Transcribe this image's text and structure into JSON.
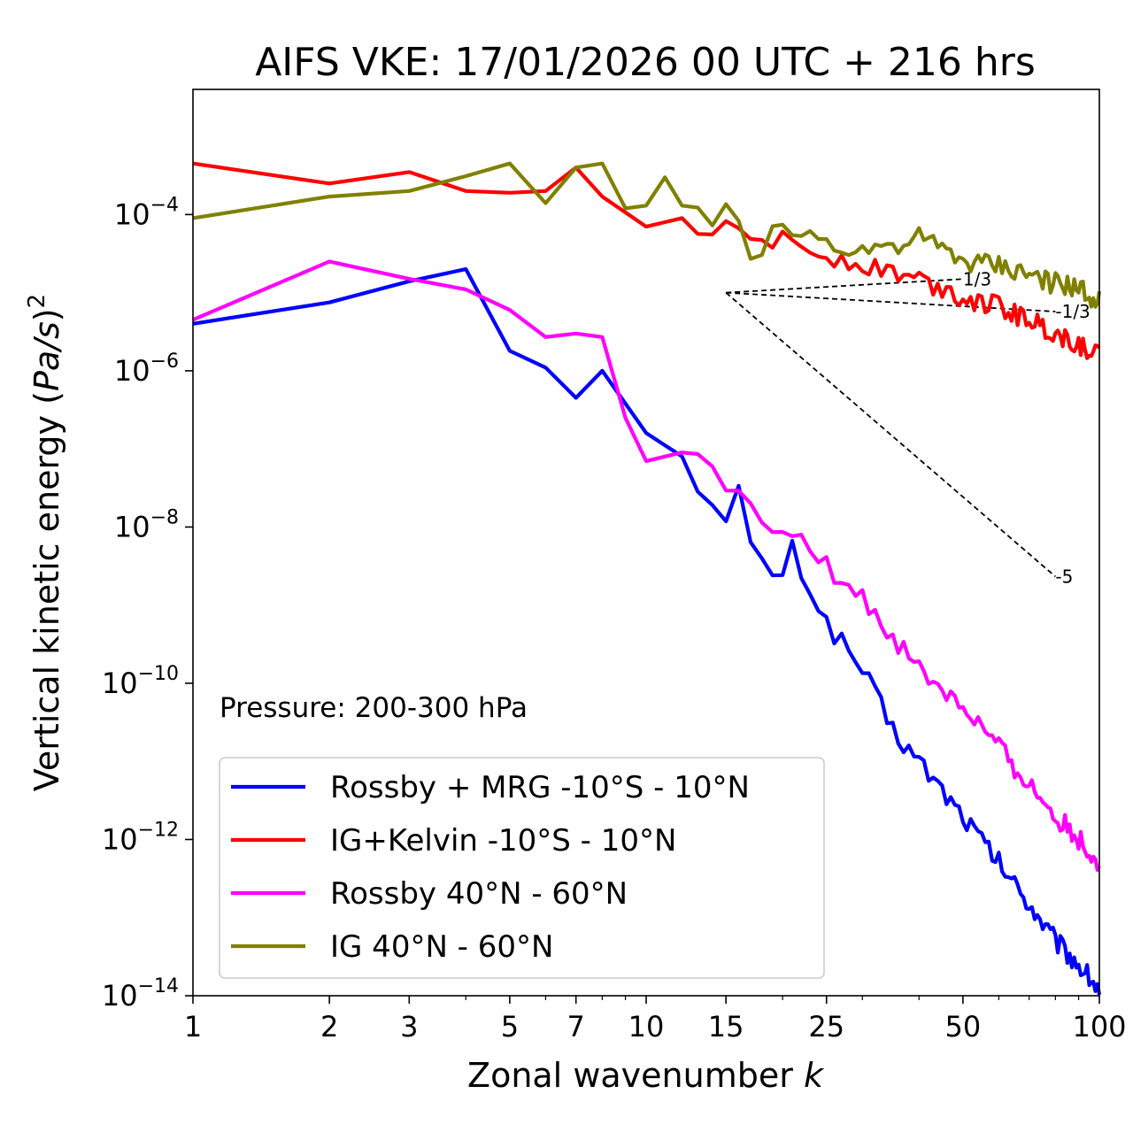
{
  "chart_data": {
    "type": "line",
    "title": "AIFS VKE: 17/01/2026 00 UTC + 216 hrs",
    "xlabel": "Zonal wavenumber",
    "xlabel_symbol": "k",
    "ylabel": "Vertical kinetic energy (",
    "ylabel_unit": "Pa/s",
    "ylabel_close": ")",
    "ylabel_exp": "2",
    "xscale": "log",
    "yscale": "log",
    "xlim": [
      1,
      100
    ],
    "ylim": [
      1e-14,
      0.004
    ],
    "xticks": [
      1,
      2,
      3,
      5,
      7,
      10,
      15,
      25,
      50,
      100
    ],
    "xtick_labels": [
      "1",
      "2",
      "3",
      "5",
      "7",
      "10",
      "15",
      "25",
      "50",
      "100"
    ],
    "yticks": [
      1e-14,
      1e-12,
      1e-10,
      1e-08,
      1e-06,
      0.0001
    ],
    "ytick_labels": [
      {
        "base": "10",
        "exp": "−14"
      },
      {
        "base": "10",
        "exp": "−12"
      },
      {
        "base": "10",
        "exp": "−10"
      },
      {
        "base": "10",
        "exp": "−8"
      },
      {
        "base": "10",
        "exp": "−6"
      },
      {
        "base": "10",
        "exp": "−4"
      }
    ],
    "annotation": "Pressure: 200-300 hPa",
    "legend_position": "lower-left",
    "reference_slopes": [
      {
        "label": "1/3",
        "k_start": 15,
        "k_end": 50,
        "y_start": 1e-05,
        "exponent": 0.3333
      },
      {
        "label": "-1/3",
        "k_start": 15,
        "k_end": 80,
        "y_start": 1e-05,
        "exponent": -0.3333
      },
      {
        "label": "-5",
        "k_start": 15,
        "k_end": 80,
        "y_start": 1e-05,
        "exponent": -5
      }
    ],
    "series": [
      {
        "name": "Rossby + MRG -10°S - 10°N",
        "color": "#0000ff",
        "anchors": [
          [
            1,
            4e-06
          ],
          [
            2,
            7.5e-06
          ],
          [
            3,
            1.4e-05
          ],
          [
            4,
            2e-05
          ],
          [
            5,
            1.8e-06
          ],
          [
            6,
            1.1e-06
          ],
          [
            7,
            4.5e-07
          ],
          [
            8,
            1e-06
          ],
          [
            10,
            1.6e-07
          ],
          [
            12,
            8e-08
          ],
          [
            15,
            1e-08
          ],
          [
            16,
            3e-08
          ],
          [
            17,
            5e-09
          ],
          [
            20,
            2.2e-09
          ],
          [
            21,
            5e-09
          ],
          [
            25,
            6e-10
          ],
          [
            30,
            1.5e-10
          ],
          [
            35,
            2.5e-11
          ],
          [
            40,
            1e-11
          ],
          [
            50,
            2e-12
          ],
          [
            60,
            5e-13
          ],
          [
            70,
            1.5e-13
          ],
          [
            80,
            5e-14
          ],
          [
            90,
            2.5e-14
          ],
          [
            100,
            1.2e-14
          ]
        ]
      },
      {
        "name": "IG+Kelvin -10°S - 10°N",
        "color": "#ff0000",
        "anchors": [
          [
            1,
            0.00045
          ],
          [
            2,
            0.00025
          ],
          [
            3,
            0.00035
          ],
          [
            4,
            0.0002
          ],
          [
            5,
            0.00019
          ],
          [
            6,
            0.0002
          ],
          [
            7,
            0.0004
          ],
          [
            8,
            0.00017
          ],
          [
            10,
            7e-05
          ],
          [
            12,
            9e-05
          ],
          [
            15,
            6e-05
          ],
          [
            20,
            4.5e-05
          ],
          [
            25,
            3e-05
          ],
          [
            30,
            2.4e-05
          ],
          [
            40,
            1.5e-05
          ],
          [
            50,
            9e-06
          ],
          [
            60,
            6.5e-06
          ],
          [
            70,
            4.5e-06
          ],
          [
            80,
            3e-06
          ],
          [
            90,
            2.2e-06
          ],
          [
            100,
            1.6e-06
          ]
        ]
      },
      {
        "name": "Rossby 40°N - 60°N",
        "color": "#ff00ff",
        "anchors": [
          [
            1,
            4.5e-06
          ],
          [
            2,
            2.5e-05
          ],
          [
            3,
            1.5e-05
          ],
          [
            4,
            1.1e-05
          ],
          [
            5,
            6e-06
          ],
          [
            6,
            2.7e-06
          ],
          [
            7,
            3e-06
          ],
          [
            8,
            2.7e-06
          ],
          [
            9,
            2.5e-07
          ],
          [
            10,
            7e-08
          ],
          [
            12,
            9e-08
          ],
          [
            15,
            3.5e-08
          ],
          [
            17,
            1.6e-08
          ],
          [
            20,
            1e-08
          ],
          [
            25,
            3e-09
          ],
          [
            30,
            1.2e-09
          ],
          [
            40,
            1.5e-10
          ],
          [
            50,
            5e-11
          ],
          [
            60,
            1.5e-11
          ],
          [
            70,
            5e-12
          ],
          [
            80,
            2e-12
          ],
          [
            90,
            1e-12
          ],
          [
            100,
            5e-13
          ]
        ]
      },
      {
        "name": "IG 40°N - 60°N",
        "color": "#808000",
        "anchors": [
          [
            1,
            9e-05
          ],
          [
            2,
            0.00017
          ],
          [
            3,
            0.0002
          ],
          [
            4,
            0.00031
          ],
          [
            5,
            0.00045
          ],
          [
            6,
            0.00014
          ],
          [
            7,
            0.0004
          ],
          [
            8,
            0.00045
          ],
          [
            9,
            0.00012
          ],
          [
            10,
            0.00013
          ],
          [
            11,
            0.0003
          ],
          [
            12,
            0.00013
          ],
          [
            14,
            7e-05
          ],
          [
            15,
            0.00014
          ],
          [
            17,
            3e-05
          ],
          [
            20,
            7e-05
          ],
          [
            25,
            4.5e-05
          ],
          [
            30,
            3.5e-05
          ],
          [
            40,
            5e-05
          ],
          [
            50,
            2.5e-05
          ],
          [
            60,
            2.2e-05
          ],
          [
            70,
            1.7e-05
          ],
          [
            80,
            1.3e-05
          ],
          [
            90,
            1.1e-05
          ],
          [
            100,
            8e-06
          ]
        ]
      }
    ]
  }
}
